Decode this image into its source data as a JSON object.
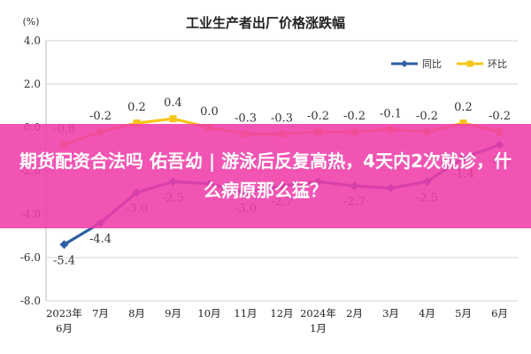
{
  "unit_label": "(%)",
  "overlay_text": "期货配资合法吗 佑吾幼 | 游泳后反复高热，4天内2次就诊，什么病原那么猛？",
  "chart_data": {
    "type": "line",
    "title": "工业生产者出厂价格涨跌幅",
    "categories": [
      "2023年6月",
      "7月",
      "8月",
      "9月",
      "10月",
      "11月",
      "12月",
      "2024年1月",
      "2月",
      "3月",
      "4月",
      "5月",
      "6月"
    ],
    "category_lines": [
      [
        "2023年",
        "6月"
      ],
      [
        "7月"
      ],
      [
        "8月"
      ],
      [
        "9月"
      ],
      [
        "10月"
      ],
      [
        "11月"
      ],
      [
        "12月"
      ],
      [
        "2024年",
        "1月"
      ],
      [
        "2月"
      ],
      [
        "3月"
      ],
      [
        "4月"
      ],
      [
        "5月"
      ],
      [
        "6月"
      ]
    ],
    "series": [
      {
        "name": "同比",
        "color": "#2e5fa3",
        "values": [
          -5.4,
          -4.4,
          -3.0,
          -2.5,
          -2.6,
          -3.0,
          -2.7,
          -2.5,
          -2.7,
          -2.8,
          -2.5,
          -1.4,
          -0.8
        ],
        "labels": [
          "-5.4",
          "-4.4",
          "-3.0",
          "-2.5",
          "",
          "-3.0",
          "-2.7",
          "",
          "-2.7",
          "",
          "-2.5",
          "-1.4",
          "-0.8"
        ]
      },
      {
        "name": "环比",
        "color": "#f5c518",
        "values": [
          -0.8,
          -0.2,
          0.2,
          0.4,
          0.0,
          -0.3,
          -0.3,
          -0.2,
          -0.2,
          -0.1,
          -0.2,
          0.2,
          -0.2
        ],
        "labels": [
          "-0.8",
          "-0.2",
          "0.2",
          "0.4",
          "0.0",
          "-0.3",
          "-0.3",
          "-0.2",
          "-0.2",
          "-0.1",
          "-0.2",
          "0.2",
          "-0.2"
        ]
      }
    ],
    "ylim": [
      -8.0,
      4.0
    ],
    "yticks": [
      "4.0",
      "2.0",
      "0.0",
      "-2.0",
      "-4.0",
      "-6.0",
      "-8.0"
    ],
    "grid": true,
    "legend_position": "top-right"
  }
}
